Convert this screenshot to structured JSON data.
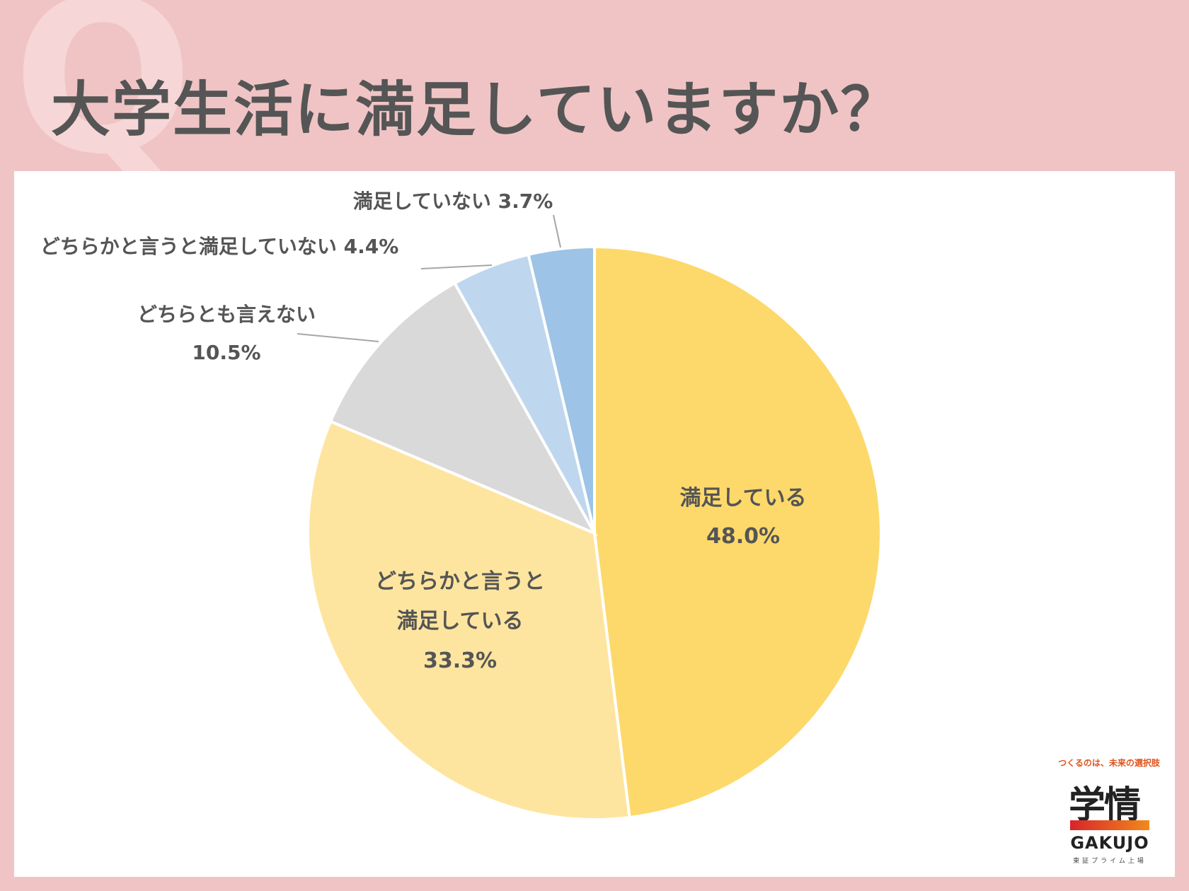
{
  "header": {
    "watermark_letter": "Q",
    "title": "大学生活に満足していますか？"
  },
  "chart_data": {
    "type": "pie",
    "start_angle_deg": 0,
    "direction": "clockwise",
    "slices": [
      {
        "label": "満足している",
        "label_lines": [
          "満足している"
        ],
        "value": 48.0,
        "value_text": "48.0%",
        "color": "#fdd96b",
        "label_position": "inside"
      },
      {
        "label": "どちらかと言うと満足している",
        "label_lines": [
          "どちらかと言うと",
          "満足している"
        ],
        "value": 33.3,
        "value_text": "33.3%",
        "color": "#fee59f",
        "label_position": "inside"
      },
      {
        "label": "どちらとも言えない",
        "label_lines": [
          "どちらとも言えない"
        ],
        "value": 10.5,
        "value_text": "10.5%",
        "color": "#d9d9d9",
        "label_position": "outside"
      },
      {
        "label": "どちらかと言うと満足していない",
        "label_lines": [
          "どちらかと言うと満足していない"
        ],
        "value": 4.4,
        "value_text": "4.4%",
        "color": "#bed7ee",
        "label_position": "outside"
      },
      {
        "label": "満足していない",
        "label_lines": [
          "満足していない"
        ],
        "value": 3.7,
        "value_text": "3.7%",
        "color": "#9dc3e6",
        "label_position": "outside"
      }
    ],
    "title": "大学生活に満足していますか？",
    "legend": "none"
  },
  "logo": {
    "tagline": "つくるのは、未来の選択肢",
    "kanji": "学情",
    "name": "GAKUJO",
    "subtitle": "東証プライム上場",
    "bar_colors": [
      "#d8242a",
      "#f08a1c"
    ]
  }
}
